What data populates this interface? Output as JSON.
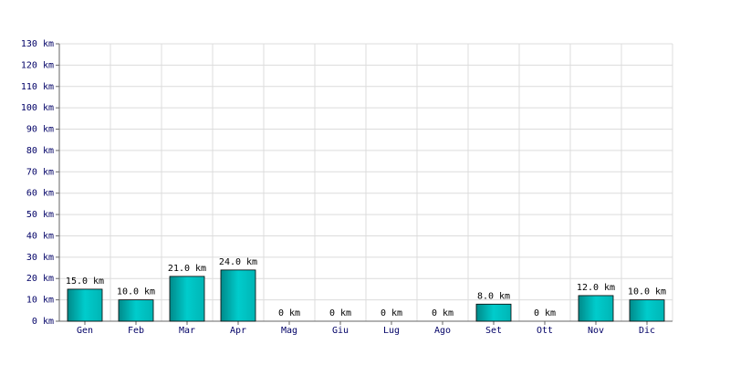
{
  "chart_data": {
    "type": "bar",
    "categories": [
      "Gen",
      "Feb",
      "Mar",
      "Apr",
      "Mag",
      "Giu",
      "Lug",
      "Ago",
      "Set",
      "Ott",
      "Nov",
      "Dic"
    ],
    "values": [
      15,
      10,
      21,
      24,
      0,
      0,
      0,
      0,
      8,
      0,
      12,
      10
    ],
    "value_labels": [
      "15.0 km",
      "10.0 km",
      "21.0 km",
      "24.0 km",
      "0 km",
      "0 km",
      "0 km",
      "0 km",
      "8.0 km",
      "0 km",
      "12.0 km",
      "10.0 km"
    ],
    "color": "#00cccc",
    "ylim": [
      0,
      130
    ],
    "yticks": [
      {
        "value": 0,
        "label": "0 km"
      },
      {
        "value": 10,
        "label": "10 km"
      },
      {
        "value": 20,
        "label": "20 km"
      },
      {
        "value": 30,
        "label": "30 km"
      },
      {
        "value": 40,
        "label": "40 km"
      },
      {
        "value": 50,
        "label": "50 km"
      },
      {
        "value": 60,
        "label": "60 km"
      },
      {
        "value": 70,
        "label": "70 km"
      },
      {
        "value": 80,
        "label": "80 km"
      },
      {
        "value": 90,
        "label": "90 km"
      },
      {
        "value": 100,
        "label": "100 km"
      },
      {
        "value": 110,
        "label": "110 km"
      },
      {
        "value": 120,
        "label": "120 km"
      },
      {
        "value": 130,
        "label": "130 km"
      }
    ],
    "grid": true
  }
}
